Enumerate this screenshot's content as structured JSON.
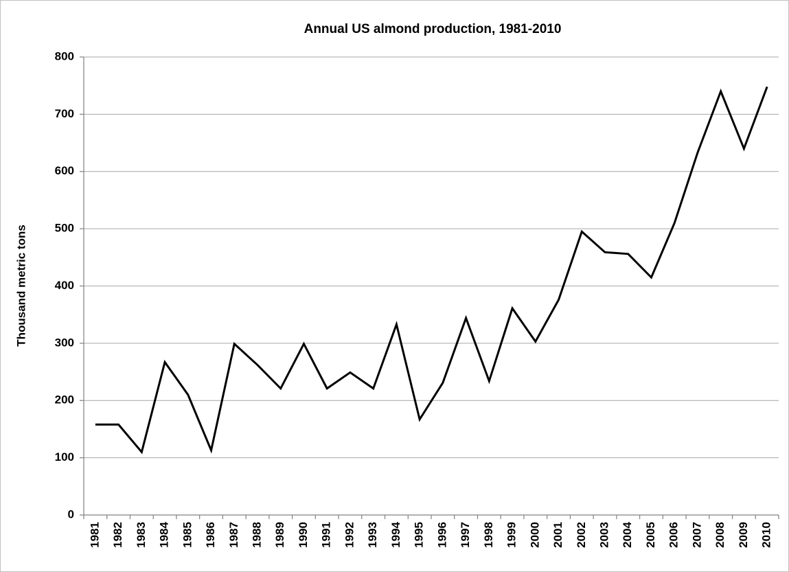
{
  "chart_data": {
    "type": "line",
    "title": "Annual US almond production, 1981-2010",
    "y_label": "Thousand  metric tons",
    "categories": [
      "1981",
      "1982",
      "1983",
      "1984",
      "1985",
      "1986",
      "1987",
      "1988",
      "1989",
      "1990",
      "1991",
      "1992",
      "1993",
      "1994",
      "1995",
      "1996",
      "1997",
      "1998",
      "1999",
      "2000",
      "2001",
      "2002",
      "2003",
      "2004",
      "2005",
      "2006",
      "2007",
      "2008",
      "2009",
      "2010"
    ],
    "series": [
      {
        "name": "Almond production",
        "color": "#000000",
        "values": [
          158,
          158,
          110,
          267,
          210,
          113,
          299,
          262,
          221,
          299,
          221,
          249,
          221,
          333,
          167,
          231,
          344,
          234,
          361,
          303,
          376,
          495,
          459,
          456,
          415,
          510,
          633,
          740,
          640,
          748
        ]
      }
    ],
    "ylim": [
      0,
      800
    ],
    "yticks": [
      0,
      100,
      200,
      300,
      400,
      500,
      600,
      700,
      800
    ],
    "grid": true
  }
}
